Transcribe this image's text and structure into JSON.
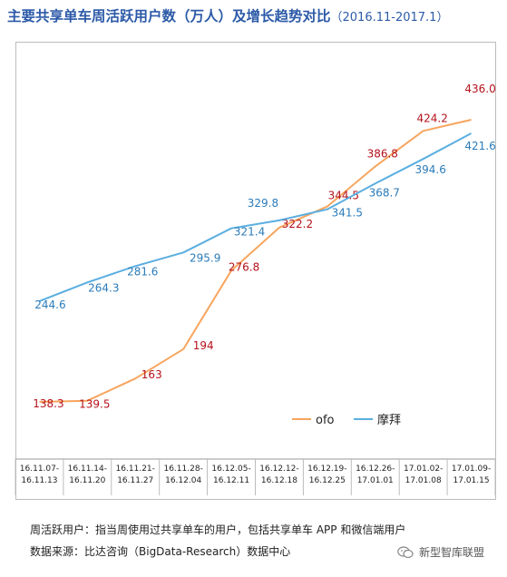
{
  "title": "主要共享单车周活跃用户数（万人）及增长趋势对比",
  "title_range": "（2016.11-2017.1）",
  "footer": {
    "note": "周活跃用户：指当周使用过共享单车的用户，包括共享单车 APP 和微信端用户",
    "source": "数据来源：比达咨询（BigData-Research）数据中心",
    "brand": "新型智库联盟",
    "brand_icon": "wechat-icon"
  },
  "colors": {
    "ofo": "#f7a55e",
    "mobike": "#5aaee0",
    "ofo_label": "#b5121b",
    "mobike_label": "#2b7bb9"
  },
  "chart_data": {
    "type": "line",
    "title": "主要共享单车周活跃用户数（万人）及增长趋势对比",
    "categories": [
      [
        "16.11.07-",
        "16.11.13"
      ],
      [
        "16.11.14-",
        "16.11.20"
      ],
      [
        "16.11.21-",
        "16.11.27"
      ],
      [
        "16.11.28-",
        "16.12.04"
      ],
      [
        "16.12.05-",
        "16.12.11"
      ],
      [
        "16.12.12-",
        "16.12.18"
      ],
      [
        "16.12.19-",
        "16.12.25"
      ],
      [
        "16.12.26-",
        "17.01.01"
      ],
      [
        "17.01.02-",
        "17.01.08"
      ],
      [
        "17.01.09-",
        "17.01.15"
      ]
    ],
    "series": [
      {
        "name": "ofo",
        "values": [
          138.3,
          139.5,
          163,
          194,
          276.8,
          322.2,
          344.5,
          386.8,
          424.2,
          436.0
        ],
        "labels": [
          "138.3",
          "139.5",
          "163",
          "194",
          "276.8",
          "322.2",
          "344.5",
          "386.8",
          "424.2",
          "436.0"
        ]
      },
      {
        "name": "摩拜",
        "values": [
          244.6,
          264.3,
          281.6,
          295.9,
          321.4,
          329.8,
          341.5,
          368.7,
          394.6,
          421.6
        ],
        "labels": [
          "244.6",
          "264.3",
          "281.6",
          "295.9",
          "321.4",
          "329.8",
          "341.5",
          "368.7",
          "394.6",
          "421.6"
        ]
      }
    ],
    "legend": "right",
    "grid": false,
    "ylim": [
      100,
      480
    ]
  }
}
